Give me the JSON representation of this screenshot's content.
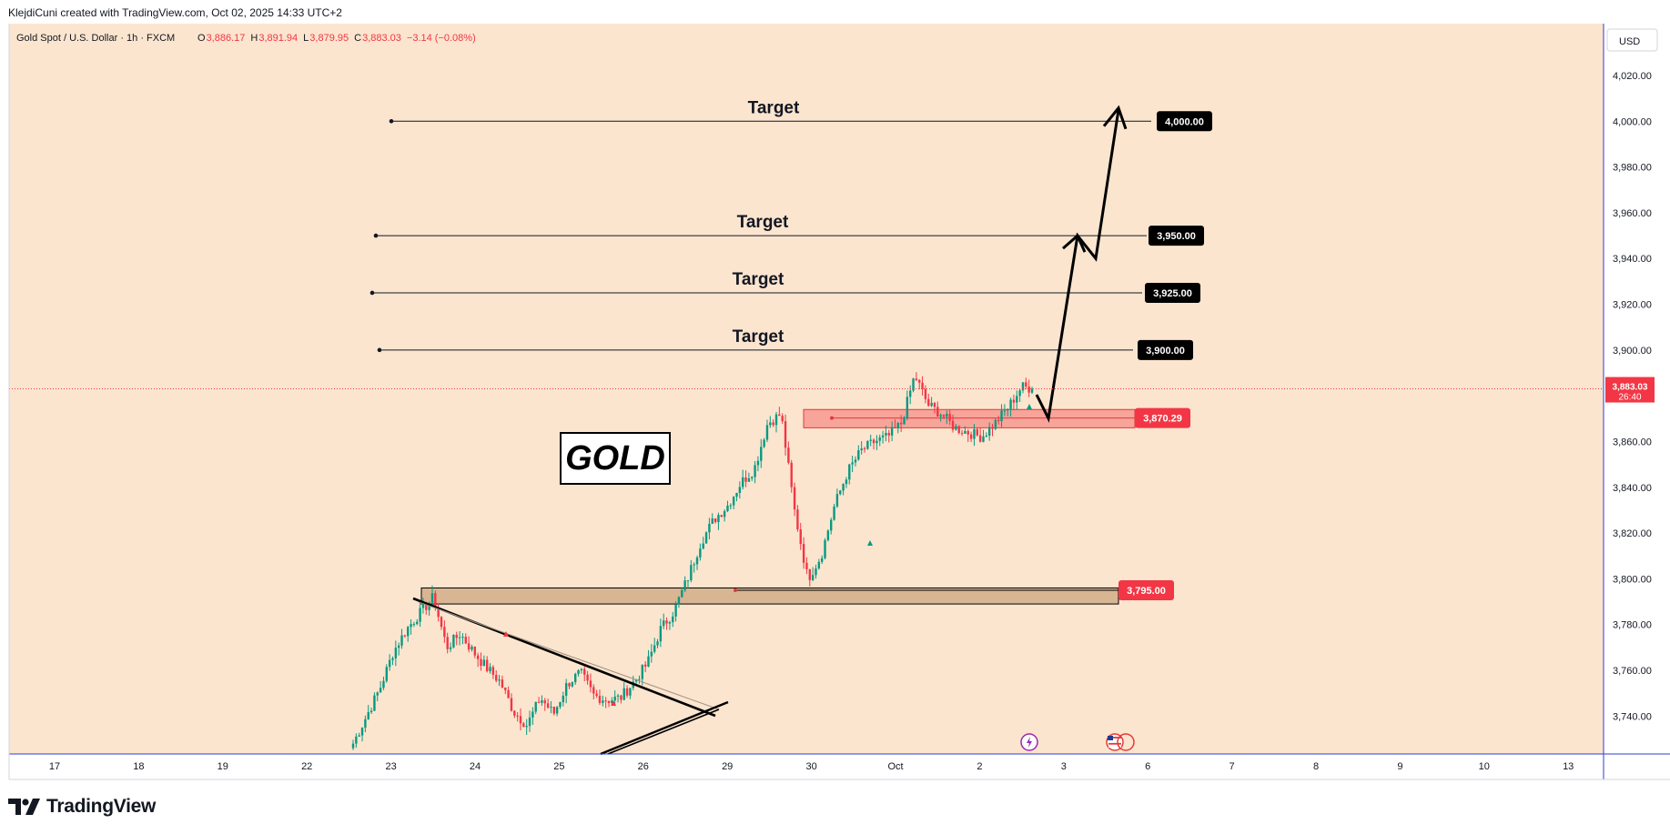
{
  "header": {
    "credit": "KlejdiCuni created with TradingView.com, Oct 02, 2025 14:33 UTC+2"
  },
  "legend": {
    "symbol": "Gold Spot / U.S. Dollar · 1h · FXCM",
    "o_label": "O",
    "o_value": "3,886.17",
    "h_label": "H",
    "h_value": "3,891.94",
    "l_label": "L",
    "l_value": "3,879.95",
    "c_label": "C",
    "c_value": "3,883.03",
    "change": "−3.14 (−0.08%)"
  },
  "currency_button": "USD",
  "brand": {
    "name": "TradingView",
    "icon": "tradingview-logo-icon"
  },
  "colors": {
    "background": "#fbe5cf",
    "up": "#089981",
    "down": "#f23645",
    "axis_line": "#2f3dd6",
    "price_tag": "#000000"
  },
  "events": [
    {
      "icon": "lightning-icon",
      "date": "Oct 3"
    },
    {
      "icon": "us-flag-icon",
      "date": "Oct 6"
    }
  ],
  "chart_data": {
    "type": "candlestick",
    "y_axis": {
      "min": 3725,
      "max": 4035,
      "ticks": [
        3740,
        3760,
        3780,
        3800,
        3820,
        3840,
        3860,
        3880,
        3900,
        3920,
        3940,
        3960,
        3980,
        4000,
        4020
      ],
      "tick_labels": [
        "3,740.00",
        "3,760.00",
        "3,780.00",
        "3,800.00",
        "3,820.00",
        "3,840.00",
        "3,860.00",
        "3,880.00",
        "3,900.00",
        "3,920.00",
        "3,940.00",
        "3,960.00",
        "3,980.00",
        "4,000.00",
        "4,020.00"
      ]
    },
    "x_axis": {
      "tick_labels": [
        "17",
        "18",
        "19",
        "22",
        "23",
        "24",
        "25",
        "26",
        "29",
        "30",
        "Oct",
        "2",
        "3",
        "6",
        "7",
        "8",
        "9",
        "10",
        "13"
      ]
    },
    "last_price": {
      "value": 3883.03,
      "label": "3,883.03",
      "countdown": "26:40"
    },
    "targets": [
      {
        "label": "Target",
        "price": 4000,
        "price_label": "4,000.00"
      },
      {
        "label": "Target",
        "price": 3950,
        "price_label": "3,950.00"
      },
      {
        "label": "Target",
        "price": 3925,
        "price_label": "3,925.00"
      },
      {
        "label": "Target",
        "price": 3900,
        "price_label": "3,900.00"
      }
    ],
    "zones": [
      {
        "name": "upper-support",
        "low": 3866,
        "high": 3874,
        "price": 3870.29,
        "price_label": "3,870.29"
      },
      {
        "name": "lower-support",
        "low": 3789,
        "high": 3796,
        "price": 3795.0,
        "price_label": "3,795.00"
      }
    ],
    "annotation": "GOLD",
    "projection_path": [
      3870,
      3950,
      3940,
      4005
    ],
    "key_prices": [
      3728,
      3740,
      3752,
      3768,
      3778,
      3785,
      3792,
      3770,
      3776,
      3768,
      3761,
      3755,
      3742,
      3736,
      3748,
      3741,
      3754,
      3759,
      3749,
      3747,
      3748,
      3755,
      3763,
      3778,
      3786,
      3800,
      3816,
      3826,
      3832,
      3842,
      3848,
      3868,
      3872,
      3830,
      3800,
      3810,
      3832,
      3847,
      3856,
      3860,
      3862,
      3868,
      3889,
      3876,
      3872,
      3866,
      3864,
      3862,
      3868,
      3875,
      3884,
      3883
    ]
  }
}
